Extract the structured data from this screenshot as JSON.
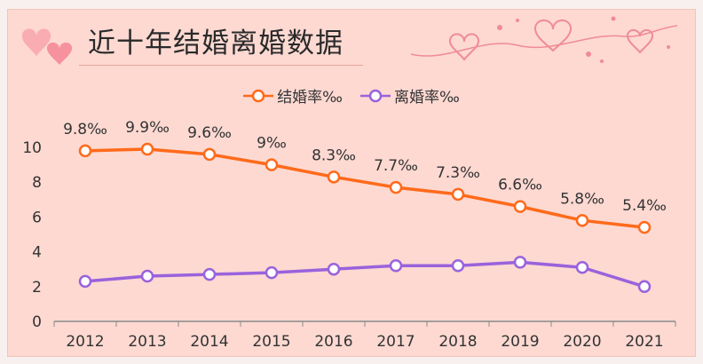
{
  "title": "近十年结婚离婚数据",
  "colors": {
    "marriage": "#ff6a1a",
    "divorce": "#9a62dc",
    "axis": "#8a8a8a",
    "text": "#333333",
    "heart": "#f58a97"
  },
  "chart_data": {
    "type": "line",
    "title": "近十年结婚离婚数据",
    "categories": [
      "2012",
      "2013",
      "2014",
      "2015",
      "2016",
      "2017",
      "2018",
      "2019",
      "2020",
      "2021"
    ],
    "series": [
      {
        "name": "结婚率‰",
        "values": [
          9.8,
          9.9,
          9.6,
          9.0,
          8.3,
          7.7,
          7.3,
          6.6,
          5.8,
          5.4
        ],
        "labels": [
          "9.8‰",
          "9.9‰",
          "9.6‰",
          "9‰",
          "8.3‰",
          "7.7‰",
          "7.3‰",
          "6.6‰",
          "5.8‰",
          "5.4‰"
        ]
      },
      {
        "name": "离婚率‰",
        "values": [
          2.3,
          2.6,
          2.7,
          2.8,
          3.0,
          3.2,
          3.2,
          3.4,
          3.1,
          2.0
        ]
      }
    ],
    "yticks": [
      "0",
      "2",
      "4",
      "6",
      "8",
      "10"
    ],
    "ylim": [
      0,
      10
    ],
    "grid": false,
    "legend": "top-center"
  }
}
